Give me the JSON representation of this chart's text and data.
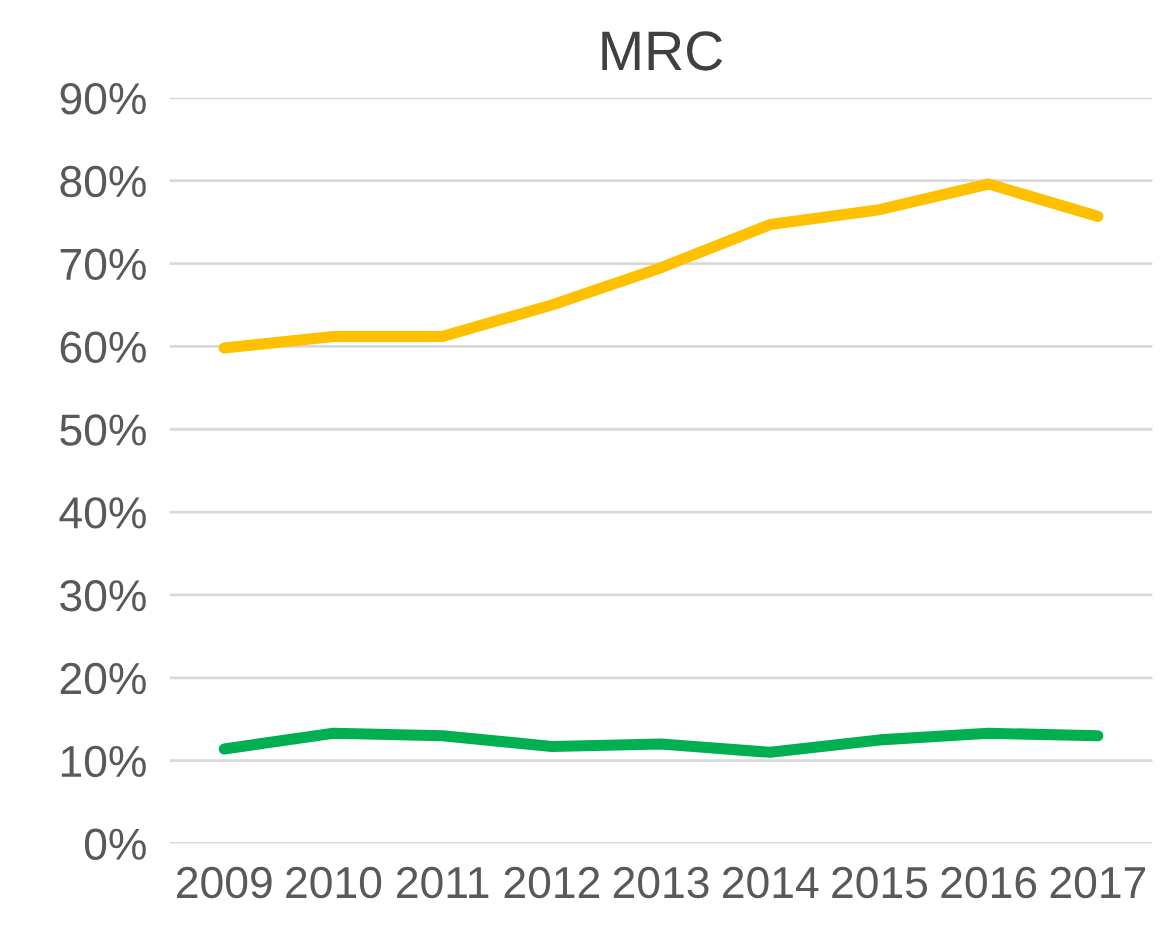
{
  "chart_data": {
    "type": "line",
    "title": "MRC",
    "categories": [
      "2009",
      "2010",
      "2011",
      "2012",
      "2013",
      "2014",
      "2015",
      "2016",
      "2017"
    ],
    "series": [
      {
        "color": "#ffc000",
        "values": [
          59.8,
          61.2,
          61.2,
          65,
          69.5,
          74.7,
          76.5,
          79.6,
          75.7
        ]
      },
      {
        "color": "#00b050",
        "values": [
          11.4,
          13.3,
          13,
          11.7,
          12,
          11,
          12.5,
          13.3,
          13
        ]
      }
    ],
    "ylim": [
      0,
      90
    ],
    "yticks": [
      {
        "value": 0,
        "label": "0%"
      },
      {
        "value": 10,
        "label": "10%"
      },
      {
        "value": 20,
        "label": "20%"
      },
      {
        "value": 30,
        "label": "30%"
      },
      {
        "value": 40,
        "label": "40%"
      },
      {
        "value": 50,
        "label": "50%"
      },
      {
        "value": 60,
        "label": "60%"
      },
      {
        "value": 70,
        "label": "70%"
      },
      {
        "value": 80,
        "label": "80%"
      },
      {
        "value": 90,
        "label": "90%"
      }
    ],
    "grid": "y",
    "marker": "none",
    "line_style": "solid"
  }
}
